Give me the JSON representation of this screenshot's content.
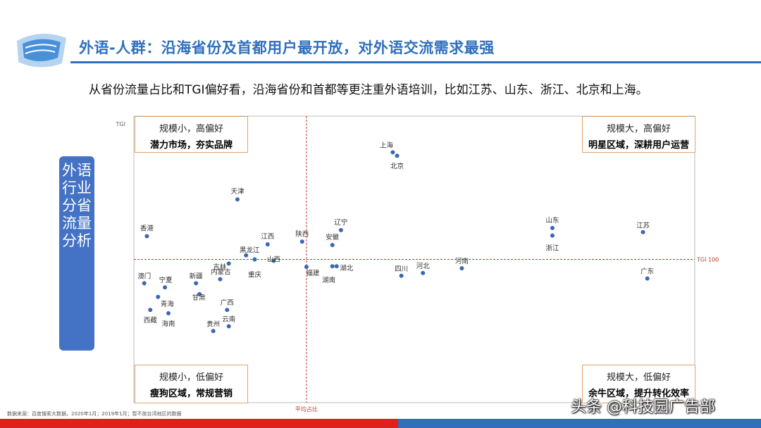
{
  "header": {
    "title": "外语-人群：沿海省份及首都用户最开放，对外语交流需求最强",
    "subtitle": "从省份流量占比和TGI偏好看，沿海省份和首都等更注重外语培训，比如江苏、山东、浙江、北京和上海。"
  },
  "side_label": "外语行业分省流量分析",
  "quadrants": {
    "top_left": {
      "line1": "规模小，高偏好",
      "line2": "潜力市场，夯实品牌"
    },
    "top_right": {
      "line1": "规模大，高偏好",
      "line2": "明星区域，深耕用户运营"
    },
    "bottom_left": {
      "line1": "规模小，低偏好",
      "line2": "瘦狗区域，常规营销"
    },
    "bottom_right": {
      "line1": "规模大，低偏好",
      "line2": "余牛区域，提升转化效率"
    }
  },
  "footer": {
    "source": "数据来源：百度搜索大数据，2020年1月；2019年1月；暂不放台湾地区的数据",
    "watermark": "头条 @科技园广告部"
  },
  "colors": {
    "accent": "#2f6fbd",
    "point": "#3b68b2",
    "refline": "#c0392b",
    "bar_red": "#e0201b",
    "quad_border": "#e0a36a"
  },
  "chart_data": {
    "type": "scatter",
    "ylabel": "TGI",
    "xlabel": "",
    "ref_x_label": "平均占比",
    "ref_y_label": "TGI 100",
    "ref_x": 2.0,
    "ref_y": 100,
    "xlim": [
      0,
      6.5
    ],
    "ylim": [
      79,
      121
    ],
    "points": [
      {
        "name": "上海",
        "x": 3.0,
        "y": 115.7
      },
      {
        "name": "北京",
        "x": 3.05,
        "y": 115.2
      },
      {
        "name": "天津",
        "x": 1.2,
        "y": 108.8
      },
      {
        "name": "香港",
        "x": 0.15,
        "y": 103.4
      },
      {
        "name": "辽宁",
        "x": 2.4,
        "y": 104.3
      },
      {
        "name": "陕西",
        "x": 1.95,
        "y": 102.6
      },
      {
        "name": "安徽",
        "x": 2.3,
        "y": 102.1
      },
      {
        "name": "江西",
        "x": 1.55,
        "y": 102.2
      },
      {
        "name": "黑龙江",
        "x": 1.3,
        "y": 100.6
      },
      {
        "name": "山西",
        "x": 1.62,
        "y": 99.8
      },
      {
        "name": "吉林",
        "x": 1.1,
        "y": 99.4
      },
      {
        "name": "重庆",
        "x": 1.4,
        "y": 100.0
      },
      {
        "name": "福建",
        "x": 2.0,
        "y": 98.9
      },
      {
        "name": "湖北",
        "x": 2.35,
        "y": 99.0
      },
      {
        "name": "湖南",
        "x": 2.3,
        "y": 99.0
      },
      {
        "name": "内蒙古",
        "x": 1.0,
        "y": 97.1
      },
      {
        "name": "四川",
        "x": 3.1,
        "y": 97.6
      },
      {
        "name": "河北",
        "x": 3.35,
        "y": 98.0
      },
      {
        "name": "河南",
        "x": 3.8,
        "y": 98.7
      },
      {
        "name": "山东",
        "x": 4.85,
        "y": 104.6
      },
      {
        "name": "浙江",
        "x": 4.85,
        "y": 103.5
      },
      {
        "name": "江苏",
        "x": 5.9,
        "y": 104.0
      },
      {
        "name": "广东",
        "x": 5.95,
        "y": 97.2
      },
      {
        "name": "澳门",
        "x": 0.12,
        "y": 96.5
      },
      {
        "name": "宁夏",
        "x": 0.36,
        "y": 95.9
      },
      {
        "name": "新疆",
        "x": 0.72,
        "y": 96.5
      },
      {
        "name": "甘肃",
        "x": 0.76,
        "y": 94.9
      },
      {
        "name": "青海",
        "x": 0.28,
        "y": 94.5
      },
      {
        "name": "西藏",
        "x": 0.19,
        "y": 92.6
      },
      {
        "name": "海南",
        "x": 0.4,
        "y": 92.1
      },
      {
        "name": "广西",
        "x": 1.08,
        "y": 92.6
      },
      {
        "name": "云南",
        "x": 1.1,
        "y": 90.2
      },
      {
        "name": "贵州",
        "x": 0.92,
        "y": 89.5
      }
    ]
  }
}
